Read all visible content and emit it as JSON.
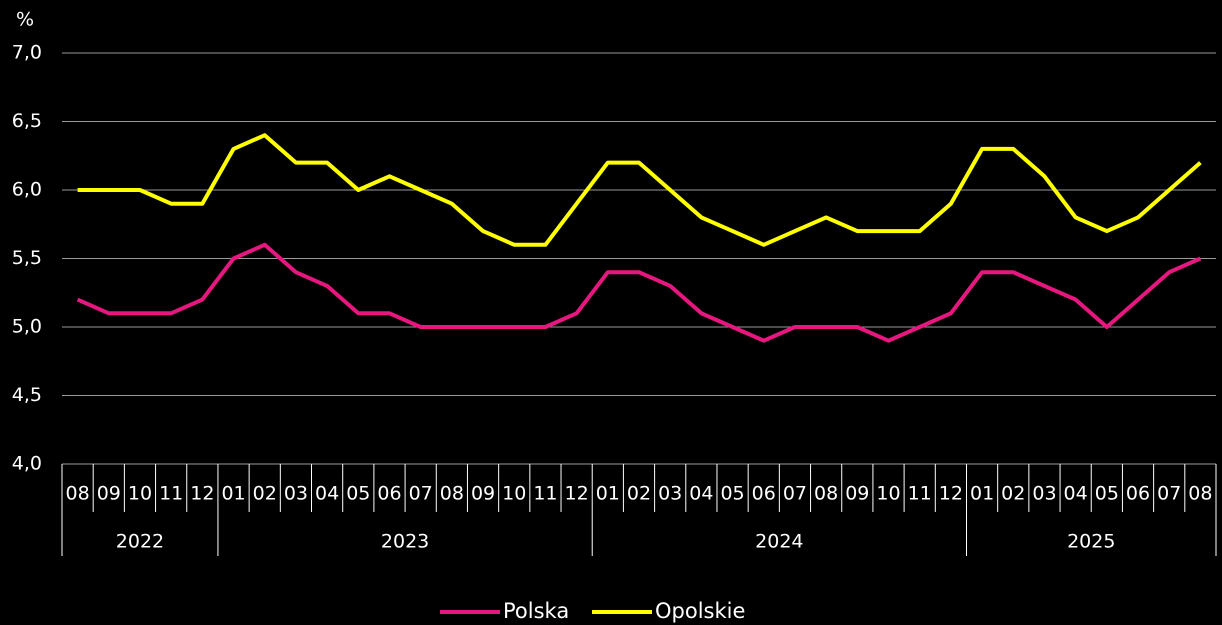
{
  "chart_data": {
    "type": "line",
    "y_unit": "%",
    "categories": [
      "08",
      "09",
      "10",
      "11",
      "12",
      "01",
      "02",
      "03",
      "04",
      "05",
      "06",
      "07",
      "08",
      "09",
      "10",
      "11",
      "12",
      "01",
      "02",
      "03",
      "04",
      "05",
      "06",
      "07",
      "08",
      "09",
      "10",
      "11",
      "12",
      "01",
      "02",
      "03",
      "04",
      "05",
      "06",
      "07",
      "08"
    ],
    "year_groups": [
      {
        "label": "2022",
        "months": 5
      },
      {
        "label": "2023",
        "months": 12
      },
      {
        "label": "2024",
        "months": 12
      },
      {
        "label": "2025",
        "months": 8
      }
    ],
    "series": [
      {
        "name": "Polska",
        "color": "#e6177e",
        "values": [
          5.2,
          5.1,
          5.1,
          5.1,
          5.2,
          5.5,
          5.6,
          5.4,
          5.3,
          5.1,
          5.1,
          5.0,
          5.0,
          5.0,
          5.0,
          5.0,
          5.1,
          5.4,
          5.4,
          5.3,
          5.1,
          5.0,
          4.9,
          5.0,
          5.0,
          5.0,
          4.9,
          5.0,
          5.1,
          5.4,
          5.4,
          5.3,
          5.2,
          5.0,
          5.2,
          5.4,
          5.5
        ]
      },
      {
        "name": "Opolskie",
        "color": "#ffff00",
        "values": [
          6.0,
          6.0,
          6.0,
          5.9,
          5.9,
          6.3,
          6.4,
          6.2,
          6.2,
          6.0,
          6.1,
          6.0,
          5.9,
          5.7,
          5.6,
          5.6,
          5.9,
          6.2,
          6.2,
          6.0,
          5.8,
          5.7,
          5.6,
          5.7,
          5.8,
          5.7,
          5.7,
          5.7,
          5.9,
          6.3,
          6.3,
          6.1,
          5.8,
          5.7,
          5.8,
          6.0,
          6.2
        ]
      }
    ],
    "ylim": [
      4.0,
      7.0
    ],
    "yticks": [
      {
        "value": 4.0,
        "label": "4,0"
      },
      {
        "value": 4.5,
        "label": "4,5"
      },
      {
        "value": 5.0,
        "label": "5,0"
      },
      {
        "value": 5.5,
        "label": "5,5"
      },
      {
        "value": 6.0,
        "label": "6,0"
      },
      {
        "value": 6.5,
        "label": "6,5"
      },
      {
        "value": 7.0,
        "label": "7,0"
      }
    ],
    "grid": true,
    "legend": "bottom"
  }
}
